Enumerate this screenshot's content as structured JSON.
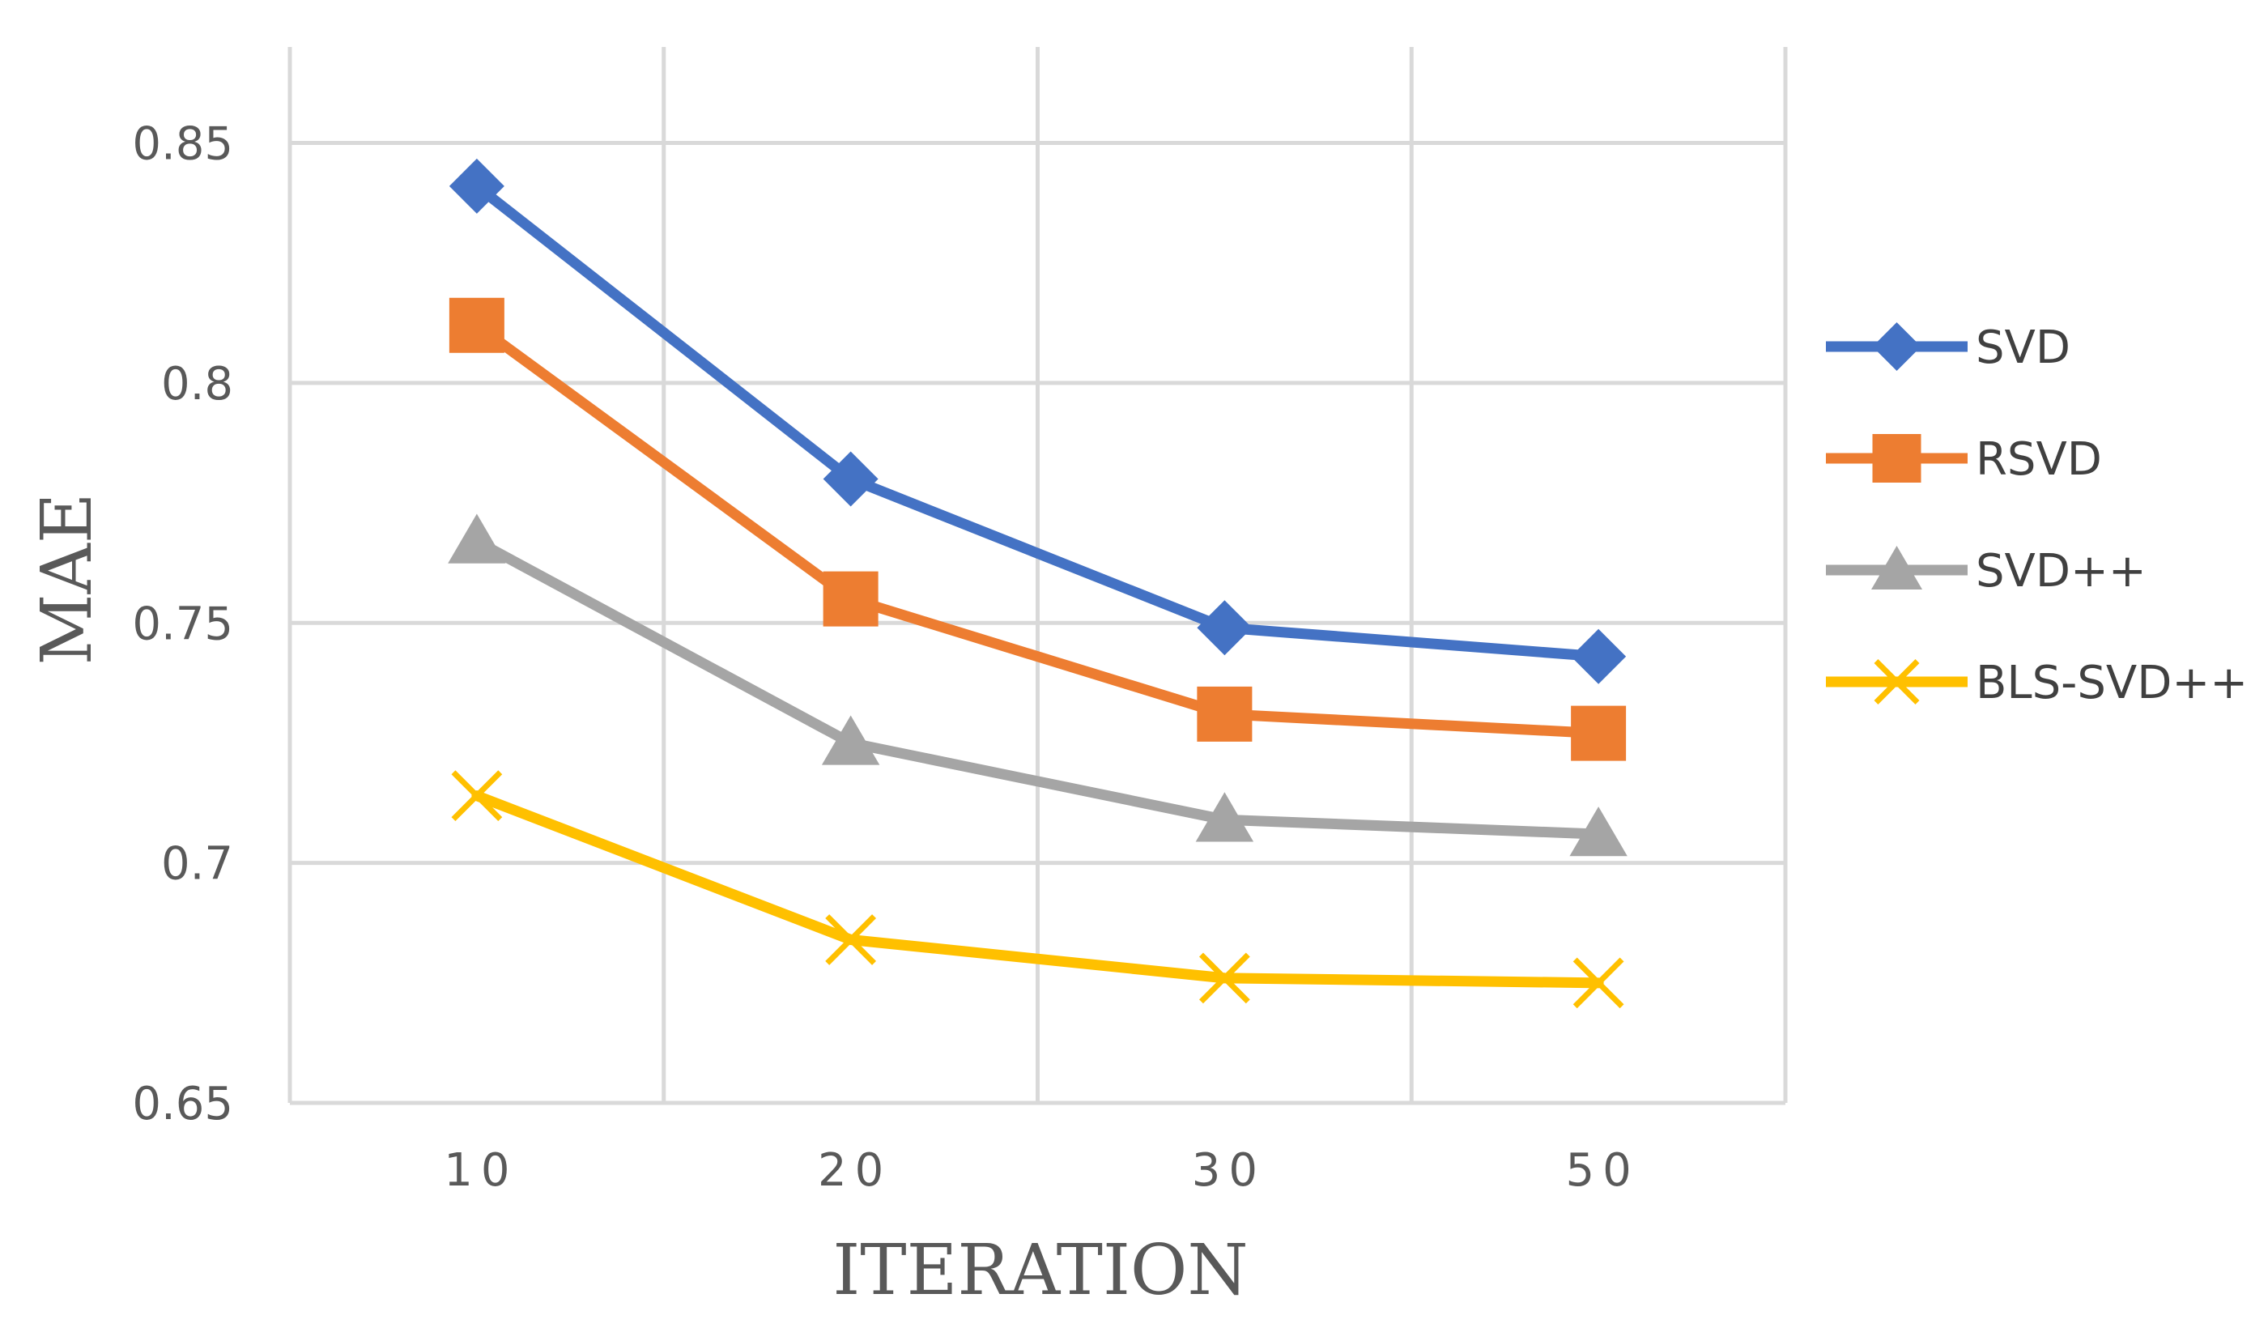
{
  "chart_data": {
    "type": "line",
    "title": "",
    "xlabel": "ITERATION",
    "ylabel": "MAE",
    "categories": [
      "10",
      "20",
      "30",
      "50"
    ],
    "ylim": [
      0.65,
      0.87
    ],
    "yticks": [
      0.65,
      0.7,
      0.75,
      0.8,
      0.85
    ],
    "ytick_labels": [
      "0.65",
      "0.7",
      "0.75",
      "0.8",
      "0.85"
    ],
    "grid": true,
    "legend_position": "right",
    "series": [
      {
        "name": "SVD",
        "color": "#4472C4",
        "marker": "diamond",
        "values": [
          0.841,
          0.78,
          0.749,
          0.743
        ]
      },
      {
        "name": "RSVD",
        "color": "#ED7D31",
        "marker": "square",
        "values": [
          0.812,
          0.755,
          0.731,
          0.727
        ]
      },
      {
        "name": "SVD++",
        "color": "#A5A5A5",
        "marker": "triangle",
        "values": [
          0.767,
          0.725,
          0.709,
          0.706
        ]
      },
      {
        "name": "BLS-SVD++",
        "color": "#FFC000",
        "marker": "x",
        "values": [
          0.714,
          0.684,
          0.676,
          0.675
        ]
      }
    ]
  }
}
